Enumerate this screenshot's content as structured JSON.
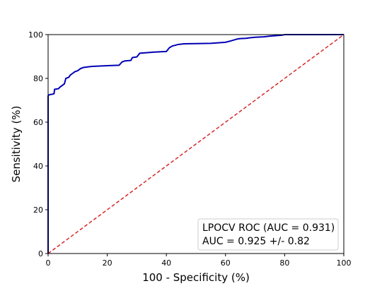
{
  "chart_data": {
    "type": "line",
    "title": "",
    "xlabel": "100 - Specificity (%)",
    "ylabel": "Sensitivity (%)",
    "xlim": [
      0,
      100
    ],
    "ylim": [
      0,
      100
    ],
    "xticks": [
      0,
      20,
      40,
      60,
      80,
      100
    ],
    "yticks": [
      0,
      20,
      40,
      60,
      80,
      100
    ],
    "grid": false,
    "legend_placement": "bottom-right",
    "legend_lines": [
      "LPOCV ROC (AUC = 0.931)",
      "AUC = 0.925 +/- 0.82"
    ],
    "series": [
      {
        "color": "#0000b4",
        "style": "solid",
        "x": [
          0,
          0,
          0.3,
          1.5,
          2,
          2.2,
          3.5,
          4,
          5,
          5.5,
          6,
          7,
          7.5,
          8.5,
          9,
          10,
          11,
          12,
          15,
          20,
          24,
          25,
          26,
          28,
          28.5,
          30,
          31,
          36,
          40,
          41,
          42,
          44,
          46,
          50,
          55,
          60,
          62,
          64,
          65,
          67,
          68,
          70,
          73,
          75,
          77,
          79,
          80,
          85,
          90,
          95,
          100
        ],
        "y": [
          0,
          72,
          72.5,
          72.8,
          73,
          75,
          75.3,
          76,
          77,
          77.5,
          80,
          80.5,
          81.5,
          82.5,
          83,
          83.5,
          84.5,
          85,
          85.5,
          85.8,
          86,
          87.5,
          88,
          88.2,
          89.5,
          89.8,
          91.5,
          92,
          92.3,
          94,
          94.8,
          95.5,
          95.8,
          95.9,
          96,
          96.5,
          97.2,
          98,
          98.2,
          98.3,
          98.5,
          98.8,
          99,
          99.3,
          99.5,
          99.7,
          100,
          100,
          100,
          100,
          100
        ]
      },
      {
        "color": "#d62728",
        "style": "dashed",
        "x": [
          0,
          100
        ],
        "y": [
          0,
          100
        ]
      }
    ]
  }
}
